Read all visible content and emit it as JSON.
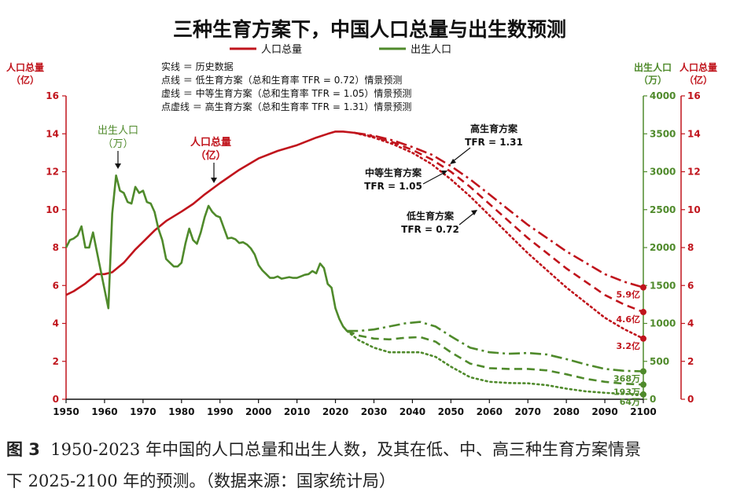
{
  "chart_data": {
    "type": "line",
    "title": "三种生育方案下，中国人口总量与出生数预测",
    "legend": [
      {
        "label": "人口总量",
        "color": "#c0141c"
      },
      {
        "label": "出生人口",
        "color": "#4f8a2b"
      }
    ],
    "notes": [
      "实线 ＝ 历史数据",
      "点线 ＝ 低生育方案（总和生育率 TFR = 0.72）情景预测",
      "虚线 ＝ 中等生育方案（总和生育率 TFR = 1.05）情景预测",
      "点虚线 ＝ 高生育方案（总和生育率 TFR = 1.31）情景预测"
    ],
    "y_left": {
      "label1": "人口总量",
      "label2": "（亿）",
      "range": [
        0,
        16
      ],
      "ticks": [
        0,
        2,
        4,
        6,
        8,
        10,
        12,
        14,
        16
      ],
      "color": "#c0141c"
    },
    "y_right_inner": {
      "label1": "出生人口",
      "label2": "（万）",
      "range": [
        0,
        4000
      ],
      "ticks": [
        0,
        500,
        1000,
        1500,
        2000,
        2500,
        3000,
        3500,
        4000
      ],
      "color": "#4f8a2b"
    },
    "y_right_outer": {
      "label1": "人口总量",
      "label2": "（亿）",
      "range": [
        0,
        16
      ],
      "ticks": [
        0,
        2,
        4,
        6,
        8,
        10,
        12,
        14,
        16
      ],
      "color": "#c0141c"
    },
    "x": {
      "range": [
        1950,
        2100
      ],
      "ticks": [
        1950,
        1960,
        1970,
        1980,
        1990,
        2000,
        2010,
        2020,
        2030,
        2040,
        2050,
        2060,
        2070,
        2080,
        2090,
        2100
      ]
    },
    "annotations": [
      {
        "text1": "出生人口",
        "text2": "（万）",
        "color": "#4f8a2b"
      },
      {
        "text1": "人口总量",
        "text2": "（亿）",
        "color": "#c0141c"
      },
      {
        "text1": "高生育方案",
        "text2": "TFR = 1.31",
        "color": "#111111"
      },
      {
        "text1": "中等生育方案",
        "text2": "TFR = 1.05",
        "color": "#111111"
      },
      {
        "text1": "低生育方案",
        "text2": "TFR = 0.72",
        "color": "#111111"
      }
    ],
    "end_labels": [
      {
        "text": "5.9亿",
        "value": 5.9,
        "axis": "left",
        "color": "#c0141c"
      },
      {
        "text": "4.6亿",
        "value": 4.6,
        "axis": "left",
        "color": "#c0141c"
      },
      {
        "text": "3.2亿",
        "value": 3.2,
        "axis": "left",
        "color": "#c0141c"
      },
      {
        "text": "368万",
        "value": 368,
        "axis": "right",
        "color": "#4f8a2b"
      },
      {
        "text": "193万",
        "value": 193,
        "axis": "right",
        "color": "#4f8a2b"
      },
      {
        "text": "64万",
        "value": 64,
        "axis": "right",
        "color": "#4f8a2b"
      }
    ],
    "series": [
      {
        "name": "人口总量",
        "kind": "population",
        "style": "solid",
        "color": "#c0141c",
        "points": [
          [
            1950,
            5.5
          ],
          [
            1952,
            5.7
          ],
          [
            1955,
            6.1
          ],
          [
            1958,
            6.6
          ],
          [
            1960,
            6.6
          ],
          [
            1962,
            6.7
          ],
          [
            1965,
            7.2
          ],
          [
            1968,
            7.9
          ],
          [
            1970,
            8.3
          ],
          [
            1973,
            8.9
          ],
          [
            1976,
            9.4
          ],
          [
            1980,
            9.9
          ],
          [
            1983,
            10.3
          ],
          [
            1986,
            10.8
          ],
          [
            1990,
            11.4
          ],
          [
            1995,
            12.1
          ],
          [
            2000,
            12.7
          ],
          [
            2005,
            13.1
          ],
          [
            2010,
            13.4
          ],
          [
            2015,
            13.8
          ],
          [
            2018,
            14.0
          ],
          [
            2020,
            14.12
          ],
          [
            2022,
            14.12
          ],
          [
            2025,
            14.05
          ]
        ]
      },
      {
        "name": "高生育方案",
        "kind": "population",
        "style": "dashdot",
        "color": "#c0141c",
        "points": [
          [
            2025,
            14.05
          ],
          [
            2030,
            13.9
          ],
          [
            2035,
            13.65
          ],
          [
            2040,
            13.3
          ],
          [
            2045,
            12.9
          ],
          [
            2050,
            12.3
          ],
          [
            2055,
            11.6
          ],
          [
            2060,
            10.8
          ],
          [
            2065,
            10.0
          ],
          [
            2070,
            9.2
          ],
          [
            2075,
            8.5
          ],
          [
            2080,
            7.8
          ],
          [
            2085,
            7.2
          ],
          [
            2090,
            6.6
          ],
          [
            2095,
            6.2
          ],
          [
            2100,
            5.9
          ]
        ]
      },
      {
        "name": "中等生育方案",
        "kind": "population",
        "style": "dashed",
        "color": "#c0141c",
        "points": [
          [
            2025,
            14.05
          ],
          [
            2030,
            13.85
          ],
          [
            2035,
            13.55
          ],
          [
            2040,
            13.15
          ],
          [
            2045,
            12.65
          ],
          [
            2050,
            12.0
          ],
          [
            2055,
            11.2
          ],
          [
            2060,
            10.3
          ],
          [
            2065,
            9.4
          ],
          [
            2070,
            8.5
          ],
          [
            2075,
            7.7
          ],
          [
            2080,
            6.9
          ],
          [
            2085,
            6.2
          ],
          [
            2090,
            5.5
          ],
          [
            2095,
            5.0
          ],
          [
            2100,
            4.6
          ]
        ]
      },
      {
        "name": "低生育方案",
        "kind": "population",
        "style": "dotted",
        "color": "#c0141c",
        "points": [
          [
            2025,
            14.05
          ],
          [
            2030,
            13.8
          ],
          [
            2035,
            13.45
          ],
          [
            2040,
            13.0
          ],
          [
            2045,
            12.4
          ],
          [
            2050,
            11.6
          ],
          [
            2055,
            10.7
          ],
          [
            2060,
            9.7
          ],
          [
            2065,
            8.7
          ],
          [
            2070,
            7.7
          ],
          [
            2075,
            6.8
          ],
          [
            2080,
            5.9
          ],
          [
            2085,
            5.1
          ],
          [
            2090,
            4.3
          ],
          [
            2095,
            3.7
          ],
          [
            2100,
            3.2
          ]
        ]
      },
      {
        "name": "出生人口",
        "kind": "births",
        "style": "solid",
        "color": "#4f8a2b",
        "points": [
          [
            1950,
            2000
          ],
          [
            1951,
            2100
          ],
          [
            1952,
            2120
          ],
          [
            1953,
            2160
          ],
          [
            1954,
            2280
          ],
          [
            1955,
            2000
          ],
          [
            1956,
            2000
          ],
          [
            1957,
            2200
          ],
          [
            1958,
            1950
          ],
          [
            1959,
            1700
          ],
          [
            1960,
            1450
          ],
          [
            1961,
            1200
          ],
          [
            1962,
            2450
          ],
          [
            1963,
            2950
          ],
          [
            1964,
            2750
          ],
          [
            1965,
            2720
          ],
          [
            1966,
            2600
          ],
          [
            1967,
            2580
          ],
          [
            1968,
            2800
          ],
          [
            1969,
            2720
          ],
          [
            1970,
            2750
          ],
          [
            1971,
            2600
          ],
          [
            1972,
            2580
          ],
          [
            1973,
            2470
          ],
          [
            1974,
            2250
          ],
          [
            1975,
            2100
          ],
          [
            1976,
            1850
          ],
          [
            1977,
            1800
          ],
          [
            1978,
            1750
          ],
          [
            1979,
            1750
          ],
          [
            1980,
            1800
          ],
          [
            1981,
            2050
          ],
          [
            1982,
            2250
          ],
          [
            1983,
            2100
          ],
          [
            1984,
            2050
          ],
          [
            1985,
            2200
          ],
          [
            1986,
            2400
          ],
          [
            1987,
            2550
          ],
          [
            1988,
            2470
          ],
          [
            1989,
            2420
          ],
          [
            1990,
            2400
          ],
          [
            1991,
            2260
          ],
          [
            1992,
            2120
          ],
          [
            1993,
            2130
          ],
          [
            1994,
            2110
          ],
          [
            1995,
            2060
          ],
          [
            1996,
            2070
          ],
          [
            1997,
            2040
          ],
          [
            1998,
            1990
          ],
          [
            1999,
            1910
          ],
          [
            2000,
            1770
          ],
          [
            2001,
            1700
          ],
          [
            2002,
            1650
          ],
          [
            2003,
            1600
          ],
          [
            2004,
            1600
          ],
          [
            2005,
            1620
          ],
          [
            2006,
            1590
          ],
          [
            2007,
            1600
          ],
          [
            2008,
            1610
          ],
          [
            2009,
            1600
          ],
          [
            2010,
            1600
          ],
          [
            2011,
            1620
          ],
          [
            2012,
            1640
          ],
          [
            2013,
            1650
          ],
          [
            2014,
            1690
          ],
          [
            2015,
            1660
          ],
          [
            2016,
            1790
          ],
          [
            2017,
            1730
          ],
          [
            2018,
            1520
          ],
          [
            2019,
            1470
          ],
          [
            2020,
            1200
          ],
          [
            2021,
            1060
          ],
          [
            2022,
            960
          ],
          [
            2023,
            900
          ]
        ]
      },
      {
        "name": "高生育方案",
        "kind": "births",
        "style": "dashdot",
        "color": "#4f8a2b",
        "points": [
          [
            2023,
            900
          ],
          [
            2026,
            900
          ],
          [
            2030,
            920
          ],
          [
            2034,
            960
          ],
          [
            2038,
            1000
          ],
          [
            2042,
            1020
          ],
          [
            2046,
            960
          ],
          [
            2050,
            830
          ],
          [
            2055,
            680
          ],
          [
            2060,
            620
          ],
          [
            2065,
            600
          ],
          [
            2070,
            610
          ],
          [
            2075,
            590
          ],
          [
            2080,
            530
          ],
          [
            2085,
            460
          ],
          [
            2090,
            400
          ],
          [
            2095,
            375
          ],
          [
            2100,
            368
          ]
        ]
      },
      {
        "name": "中等生育方案",
        "kind": "births",
        "style": "dashed",
        "color": "#4f8a2b",
        "points": [
          [
            2023,
            900
          ],
          [
            2026,
            840
          ],
          [
            2030,
            800
          ],
          [
            2034,
            790
          ],
          [
            2038,
            810
          ],
          [
            2042,
            820
          ],
          [
            2046,
            760
          ],
          [
            2050,
            620
          ],
          [
            2055,
            470
          ],
          [
            2060,
            410
          ],
          [
            2065,
            400
          ],
          [
            2070,
            400
          ],
          [
            2075,
            380
          ],
          [
            2080,
            330
          ],
          [
            2085,
            270
          ],
          [
            2090,
            230
          ],
          [
            2095,
            205
          ],
          [
            2100,
            193
          ]
        ]
      },
      {
        "name": "低生育方案",
        "kind": "births",
        "style": "dotted",
        "color": "#4f8a2b",
        "points": [
          [
            2023,
            900
          ],
          [
            2026,
            780
          ],
          [
            2030,
            680
          ],
          [
            2034,
            620
          ],
          [
            2038,
            620
          ],
          [
            2042,
            620
          ],
          [
            2046,
            560
          ],
          [
            2050,
            430
          ],
          [
            2055,
            290
          ],
          [
            2060,
            230
          ],
          [
            2065,
            215
          ],
          [
            2070,
            210
          ],
          [
            2075,
            185
          ],
          [
            2080,
            140
          ],
          [
            2085,
            105
          ],
          [
            2090,
            85
          ],
          [
            2095,
            70
          ],
          [
            2100,
            64
          ]
        ]
      }
    ]
  },
  "caption": {
    "label": "图 3",
    "line1": "1950-2023 年中国的人口总量和出生人数，及其在低、中、高三种生育方案情景",
    "line2": "下 2025-2100 年的预测。（数据来源：国家统计局）"
  }
}
